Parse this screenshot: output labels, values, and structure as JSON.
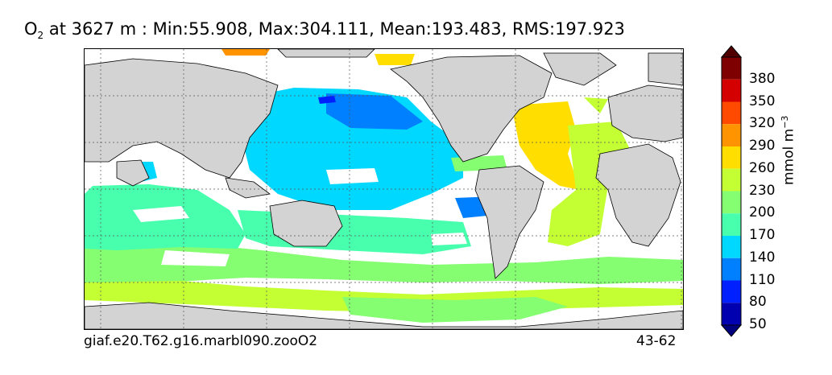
{
  "title": {
    "species": "O",
    "species_sub": "2",
    "text": " at 3627 m : Min:55.908, Max:304.111, Mean:193.483, RMS:197.923"
  },
  "footer": {
    "case_name": "giaf.e20.T62.g16.marbl090.zooO2",
    "years": "43-62"
  },
  "colorbar": {
    "units_main": "mmol m",
    "units_exp": "−3",
    "labels": [
      "380",
      "350",
      "320",
      "290",
      "260",
      "230",
      "200",
      "170",
      "140",
      "110",
      "80",
      "50"
    ],
    "colors": [
      "#7f0000",
      "#d40000",
      "#ff4a00",
      "#ff9400",
      "#ffde00",
      "#c3ff33",
      "#85ff71",
      "#48ffae",
      "#00d8ff",
      "#0080ff",
      "#0020ff",
      "#0000b0"
    ],
    "over_color": "#500000",
    "under_color": "#00007f"
  },
  "map_colors": {
    "land": "#d3d3d3",
    "missing": "#ffffff",
    "grid": "#555555"
  }
}
